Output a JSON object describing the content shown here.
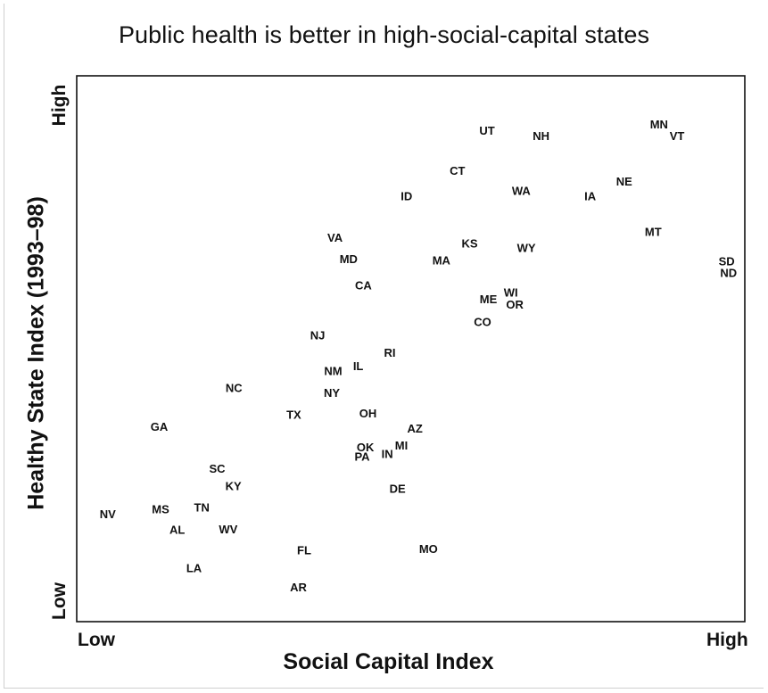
{
  "chart_data": {
    "type": "scatter",
    "title": "Public health is better in high-social-capital states",
    "xlabel": "Social Capital Index",
    "ylabel": "Healthy State Index (1993–98)",
    "x_tick_labels": [
      "Low",
      "High"
    ],
    "y_tick_labels": [
      "Low",
      "High"
    ],
    "xlim": [
      0,
      100
    ],
    "ylim": [
      0,
      100
    ],
    "grid": false,
    "legend": "none",
    "marker": "text",
    "points": [
      {
        "label": "UT",
        "x": 61.5,
        "y": 92.6
      },
      {
        "label": "NH",
        "x": 69.9,
        "y": 91.6
      },
      {
        "label": "MN",
        "x": 88.2,
        "y": 93.8
      },
      {
        "label": "VT",
        "x": 91.0,
        "y": 91.6
      },
      {
        "label": "CT",
        "x": 56.9,
        "y": 84.8
      },
      {
        "label": "NE",
        "x": 82.8,
        "y": 82.7
      },
      {
        "label": "WA",
        "x": 66.8,
        "y": 80.9
      },
      {
        "label": "ID",
        "x": 49.0,
        "y": 79.9
      },
      {
        "label": "IA",
        "x": 77.5,
        "y": 79.9
      },
      {
        "label": "VA",
        "x": 37.9,
        "y": 71.8
      },
      {
        "label": "MT",
        "x": 87.3,
        "y": 72.9
      },
      {
        "label": "KS",
        "x": 58.8,
        "y": 70.7
      },
      {
        "label": "WY",
        "x": 67.6,
        "y": 69.8
      },
      {
        "label": "MD",
        "x": 40.0,
        "y": 67.6
      },
      {
        "label": "MA",
        "x": 54.4,
        "y": 67.4
      },
      {
        "label": "SD",
        "x": 98.7,
        "y": 67.2
      },
      {
        "label": "ND",
        "x": 99.0,
        "y": 64.9
      },
      {
        "label": "CA",
        "x": 42.3,
        "y": 62.5
      },
      {
        "label": "WI",
        "x": 65.2,
        "y": 61.1
      },
      {
        "label": "ME",
        "x": 61.7,
        "y": 59.8
      },
      {
        "label": "OR",
        "x": 65.8,
        "y": 58.8
      },
      {
        "label": "CO",
        "x": 60.8,
        "y": 55.4
      },
      {
        "label": "NJ",
        "x": 35.2,
        "y": 52.8
      },
      {
        "label": "RI",
        "x": 46.4,
        "y": 49.4
      },
      {
        "label": "IL",
        "x": 41.5,
        "y": 46.8
      },
      {
        "label": "NM",
        "x": 37.6,
        "y": 45.8
      },
      {
        "label": "NC",
        "x": 22.2,
        "y": 42.5
      },
      {
        "label": "NY",
        "x": 37.4,
        "y": 41.6
      },
      {
        "label": "TX",
        "x": 31.5,
        "y": 37.3
      },
      {
        "label": "OH",
        "x": 43.0,
        "y": 37.6
      },
      {
        "label": "GA",
        "x": 10.6,
        "y": 35.0
      },
      {
        "label": "AZ",
        "x": 50.3,
        "y": 34.6
      },
      {
        "label": "MI",
        "x": 48.2,
        "y": 31.3
      },
      {
        "label": "OK",
        "x": 42.6,
        "y": 31.0
      },
      {
        "label": "IN",
        "x": 46.0,
        "y": 29.7
      },
      {
        "label": "PA",
        "x": 42.1,
        "y": 29.2
      },
      {
        "label": "SC",
        "x": 19.6,
        "y": 26.8
      },
      {
        "label": "KY",
        "x": 22.1,
        "y": 23.4
      },
      {
        "label": "DE",
        "x": 47.6,
        "y": 22.9
      },
      {
        "label": "TN",
        "x": 17.2,
        "y": 19.3
      },
      {
        "label": "MS",
        "x": 10.8,
        "y": 18.9
      },
      {
        "label": "NV",
        "x": 2.6,
        "y": 18.0
      },
      {
        "label": "AL",
        "x": 13.4,
        "y": 14.9
      },
      {
        "label": "WV",
        "x": 21.3,
        "y": 15.0
      },
      {
        "label": "FL",
        "x": 33.1,
        "y": 10.9
      },
      {
        "label": "MO",
        "x": 52.4,
        "y": 11.2
      },
      {
        "label": "LA",
        "x": 16.0,
        "y": 7.5
      },
      {
        "label": "AR",
        "x": 32.2,
        "y": 3.7
      }
    ]
  }
}
